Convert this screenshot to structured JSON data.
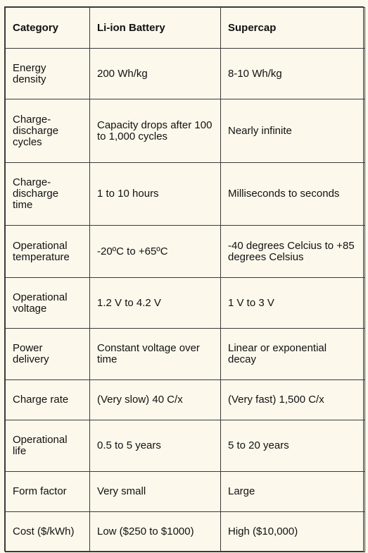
{
  "headers": [
    "Category",
    "Li-ion Battery",
    "Supercap"
  ],
  "rows": [
    {
      "category": "Energy density",
      "battery": "200 Wh/kg",
      "supercap": "8-10 Wh/kg"
    },
    {
      "category": "Charge-discharge cycles",
      "battery": "Capacity drops after 100 to 1,000 cycles",
      "supercap": "Nearly infinite"
    },
    {
      "category": "Charge-discharge time",
      "battery": "1 to 10 hours",
      "supercap": "Milliseconds to seconds"
    },
    {
      "category": "Operational temperature",
      "battery": "-20ºC to +65ºC",
      "supercap": "-40 degrees Celcius to +85 degrees Celsius"
    },
    {
      "category": "Operational voltage",
      "battery": "1.2 V to 4.2 V",
      "supercap": "1 V to 3 V"
    },
    {
      "category": "Power delivery",
      "battery": "Constant voltage over time",
      "supercap": "Linear or exponential decay"
    },
    {
      "category": "Charge rate",
      "battery": "(Very slow) 40 C/x",
      "supercap": "(Very fast) 1,500 C/x"
    },
    {
      "category": "Operational life",
      "battery": "0.5 to 5 years",
      "supercap": "5 to 20 years"
    },
    {
      "category": "Form factor",
      "battery": "Very small",
      "supercap": "Large"
    },
    {
      "category": "Cost ($/kWh)",
      "battery": "Low ($250 to $1000)",
      "supercap": "High ($10,000)"
    }
  ]
}
